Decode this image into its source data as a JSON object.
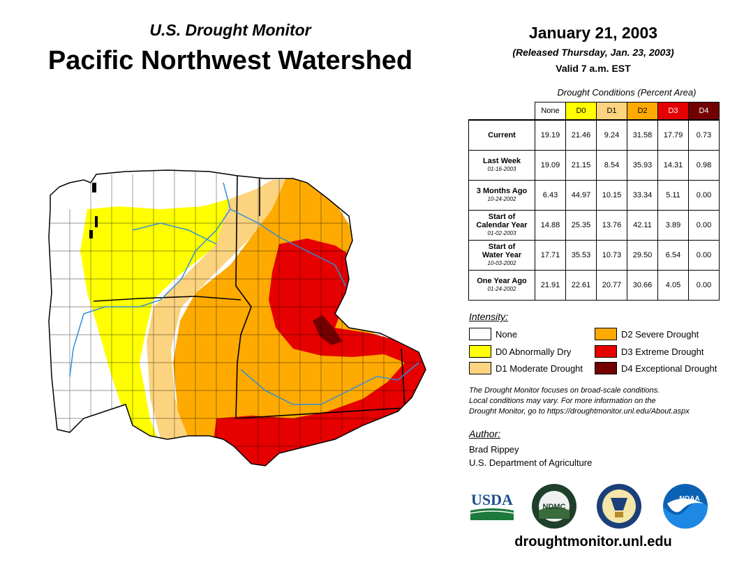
{
  "header": {
    "subtitle": "U.S. Drought Monitor",
    "title": "Pacific Northwest Watershed",
    "date": "January 21, 2003",
    "released": "(Released Thursday, Jan. 23, 2003)",
    "valid": "Valid 7 a.m. EST"
  },
  "table": {
    "caption": "Drought Conditions (Percent Area)",
    "columns": [
      {
        "label": "None",
        "color": "#ffffff"
      },
      {
        "label": "D0",
        "color": "#ffff00"
      },
      {
        "label": "D1",
        "color": "#fcd37f"
      },
      {
        "label": "D2",
        "color": "#ffaa00"
      },
      {
        "label": "D3",
        "color": "#e60000"
      },
      {
        "label": "D4",
        "color": "#730000"
      }
    ],
    "rows": [
      {
        "label": "Current",
        "label2": "",
        "date": "",
        "values": [
          "19.19",
          "21.46",
          "9.24",
          "31.58",
          "17.79",
          "0.73"
        ]
      },
      {
        "label": "Last Week",
        "label2": "",
        "date": "01-16-2003",
        "values": [
          "19.09",
          "21.15",
          "8.54",
          "35.93",
          "14.31",
          "0.98"
        ]
      },
      {
        "label": "3 Months Ago",
        "label2": "",
        "date": "10-24-2002",
        "values": [
          "6.43",
          "44.97",
          "10.15",
          "33.34",
          "5.11",
          "0.00"
        ]
      },
      {
        "label": "Start of",
        "label2": "Calendar Year",
        "date": "01-02-2003",
        "values": [
          "14.88",
          "25.35",
          "13.76",
          "42.11",
          "3.89",
          "0.00"
        ]
      },
      {
        "label": "Start of",
        "label2": "Water Year",
        "date": "10-03-2002",
        "values": [
          "17.71",
          "35.53",
          "10.73",
          "29.50",
          "6.54",
          "0.00"
        ]
      },
      {
        "label": "One Year Ago",
        "label2": "",
        "date": "01-24-2002",
        "values": [
          "21.91",
          "22.61",
          "20.77",
          "30.66",
          "4.05",
          "0.00"
        ]
      }
    ]
  },
  "legend": {
    "title": "Intensity:",
    "items": [
      {
        "label": "None",
        "color": "#ffffff"
      },
      {
        "label": "D0 Abnormally Dry",
        "color": "#ffff00"
      },
      {
        "label": "D1 Moderate Drought",
        "color": "#fcd37f"
      },
      {
        "label": "D2 Severe Drought",
        "color": "#ffaa00"
      },
      {
        "label": "D3 Extreme Drought",
        "color": "#e60000"
      },
      {
        "label": "D4 Exceptional Drought",
        "color": "#730000"
      }
    ]
  },
  "note": {
    "line1": "The Drought Monitor focuses on broad-scale conditions.",
    "line2": "Local conditions may vary. For more information on the",
    "line3": "Drought Monitor, go to https://droughtmonitor.unl.edu/About.aspx"
  },
  "author": {
    "label": "Author:",
    "name": "Brad Rippey",
    "org": "U.S. Department of Agriculture"
  },
  "logos": {
    "usda": "USDA",
    "ndmc": "NDMC",
    "noaa": "NOAA"
  },
  "website": "droughtmonitor.unl.edu"
}
